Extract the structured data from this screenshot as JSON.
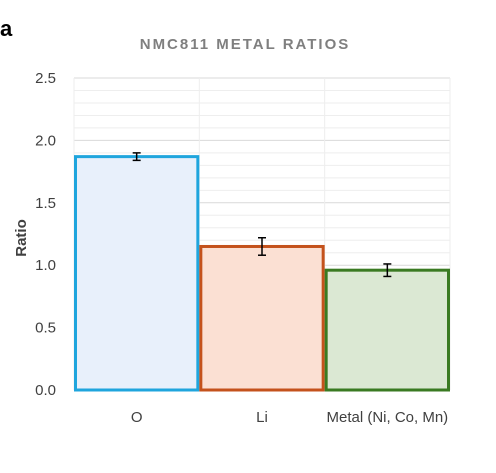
{
  "panel_label": "a",
  "chart_data": {
    "type": "bar",
    "title": "NMC811 METAL RATIOS",
    "xlabel": "",
    "ylabel": "Ratio",
    "ylim": [
      0,
      2.5
    ],
    "ytick_step": 0.5,
    "ytick_labels": [
      "0.0",
      "0.5",
      "1.0",
      "1.5",
      "2.0",
      "2.5"
    ],
    "minor_grid_step": 0.1,
    "grid": true,
    "legend": "none",
    "categories": [
      "O",
      "Li",
      "Metal (Ni, Co, Mn)"
    ],
    "values": [
      1.87,
      1.15,
      0.96
    ],
    "errors": [
      0.03,
      0.07,
      0.05
    ],
    "bar_fill_colors": [
      "#e8f0fb",
      "#fbe0d3",
      "#dbe8d3"
    ],
    "bar_edge_colors": [
      "#1fa5dd",
      "#c4521c",
      "#3a7a22"
    ],
    "title_color": "#7f7f7f",
    "axis_text_color": "#404040",
    "grid_color": "#d9d9d9",
    "minor_grid_color": "#eeeeee",
    "error_bar_color": "#000000"
  }
}
